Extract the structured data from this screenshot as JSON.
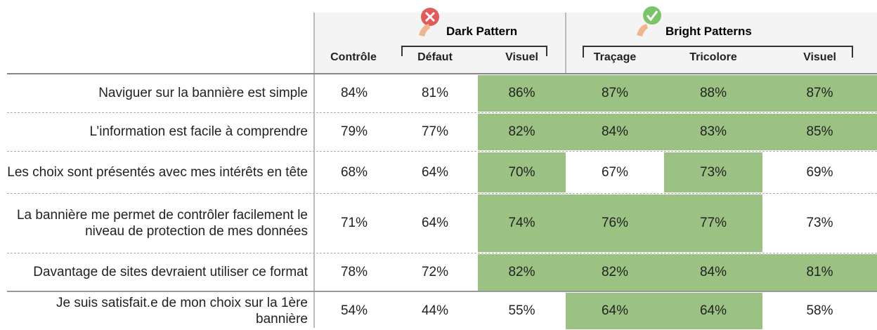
{
  "table": {
    "groups": [
      "Dark Pattern",
      "Bright Patterns"
    ],
    "columns": [
      "Contrôle",
      "Défaut",
      "Visuel",
      "Traçage",
      "Tricolore",
      "Visuel"
    ],
    "rows": [
      {
        "label": "Naviguer sur la bannière est simple",
        "cells": [
          "84%",
          "81%",
          "86%",
          "87%",
          "88%",
          "87%"
        ]
      },
      {
        "label": "L’information est facile à comprendre",
        "cells": [
          "79%",
          "77%",
          "82%",
          "84%",
          "83%",
          "85%"
        ]
      },
      {
        "label": "Les choix sont présentés avec mes intérêts en tête",
        "cells": [
          "68%",
          "64%",
          "70%",
          "67%",
          "73%",
          "69%"
        ]
      },
      {
        "label": "La bannière me permet de contrôler facilement le niveau de protection de mes données",
        "cells": [
          "71%",
          "64%",
          "74%",
          "76%",
          "77%",
          "73%"
        ]
      },
      {
        "label": "Davantage de sites devraient utiliser ce format",
        "cells": [
          "78%",
          "72%",
          "82%",
          "82%",
          "84%",
          "81%"
        ]
      },
      {
        "label": "Je suis satisfait.e de mon choix sur la 1ère bannière",
        "cells": [
          "54%",
          "44%",
          "55%",
          "64%",
          "64%",
          "58%"
        ]
      }
    ]
  }
}
